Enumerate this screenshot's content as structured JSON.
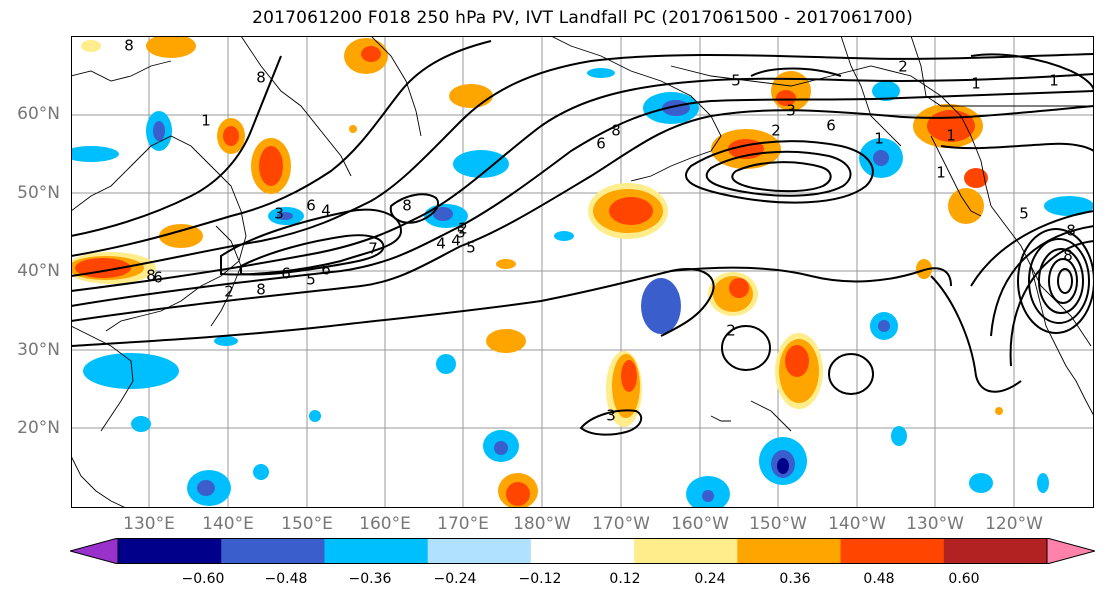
{
  "title": "2017061200 F018 250 hPa PV, IVT Landfall PC (2017061500 - 2017061700)",
  "axes": {
    "lat_labels": [
      "60°N",
      "50°N",
      "40°N",
      "30°N",
      "20°N"
    ],
    "lon_labels": [
      "130°E",
      "140°E",
      "150°E",
      "160°E",
      "170°E",
      "180°W",
      "170°W",
      "160°W",
      "150°W",
      "140°W",
      "130°W",
      "120°W"
    ]
  },
  "colorbar": {
    "tick_labels": [
      "−0.60",
      "−0.48",
      "−0.36",
      "−0.24",
      "−0.12",
      "0.12",
      "0.24",
      "0.36",
      "0.48",
      "0.60"
    ],
    "colors": [
      "#9932CC",
      "#00008B",
      "#3A5FCD",
      "#00BFFF",
      "#B0E2FF",
      "#FFFFFF",
      "#FFEC8B",
      "#FFA500",
      "#FF4500",
      "#B22222",
      "#FF82AB"
    ]
  },
  "contour_labels": [
    "8",
    "8",
    "1",
    "3",
    "4",
    "4",
    "2",
    "5",
    "6",
    "7",
    "8",
    "6",
    "8",
    "6",
    "6",
    "5",
    "2",
    "8",
    "4",
    "5",
    "8",
    "6",
    "5",
    "3",
    "2",
    "6",
    "2",
    "1",
    "1",
    "1",
    "1",
    "1",
    "8",
    "8",
    "5",
    "3",
    "2"
  ],
  "map": {
    "ocean_color": "#FFFFFF",
    "grid_color": "#999999",
    "contour_color": "#000000"
  }
}
